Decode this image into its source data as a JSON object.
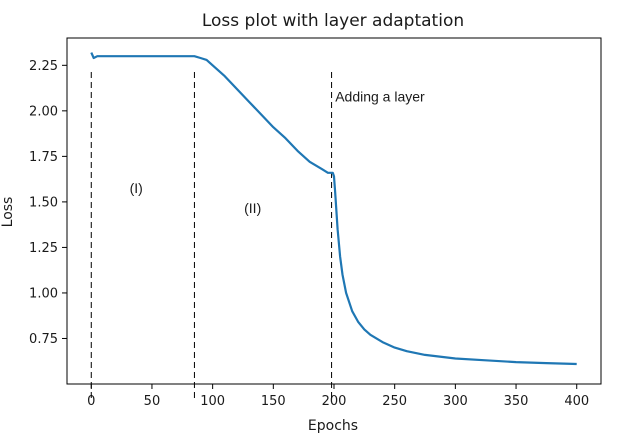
{
  "chart_data": {
    "type": "line",
    "title": "Loss plot with layer adaptation",
    "xlabel": "Epochs",
    "ylabel": "Loss",
    "xlim": [
      -20,
      420
    ],
    "ylim": [
      0.5,
      2.4
    ],
    "x_ticks": [
      0,
      50,
      100,
      150,
      200,
      250,
      300,
      350,
      400
    ],
    "x_tick_labels": [
      "0",
      "50",
      "100",
      "150",
      "200",
      "250",
      "300",
      "350",
      "400"
    ],
    "y_ticks": [
      0.75,
      1.0,
      1.25,
      1.5,
      1.75,
      2.0,
      2.25
    ],
    "y_tick_labels": [
      "0.75",
      "1.00",
      "1.25",
      "1.50",
      "1.75",
      "2.00",
      "2.25"
    ],
    "grid": false,
    "series_color": "#1f77b4",
    "series": [
      {
        "x": [
          0,
          2,
          5,
          10,
          20,
          40,
          60,
          80,
          85,
          90,
          95,
          100,
          110,
          120,
          130,
          140,
          150,
          160,
          170,
          180,
          190,
          195,
          199,
          200,
          201,
          202,
          203,
          205,
          207,
          210,
          215,
          220,
          225,
          230,
          240,
          250,
          260,
          275,
          300,
          325,
          350,
          375,
          400
        ],
        "y": [
          2.32,
          2.29,
          2.3,
          2.3,
          2.3,
          2.3,
          2.3,
          2.3,
          2.3,
          2.29,
          2.28,
          2.25,
          2.19,
          2.12,
          2.05,
          1.98,
          1.91,
          1.85,
          1.78,
          1.72,
          1.68,
          1.66,
          1.66,
          1.64,
          1.55,
          1.45,
          1.35,
          1.2,
          1.1,
          1.0,
          0.9,
          0.84,
          0.8,
          0.77,
          0.73,
          0.7,
          0.68,
          0.66,
          0.64,
          0.63,
          0.62,
          0.615,
          0.61
        ]
      }
    ],
    "vlines": [
      0,
      85,
      198
    ],
    "annotations": {
      "phase_one": {
        "text": "(I)",
        "x": 37,
        "y": 1.55
      },
      "phase_two": {
        "text": "(II)",
        "x": 133,
        "y": 1.44
      },
      "adding_layer": {
        "text": "Adding a layer",
        "x": 201,
        "y": 2.05
      }
    }
  }
}
